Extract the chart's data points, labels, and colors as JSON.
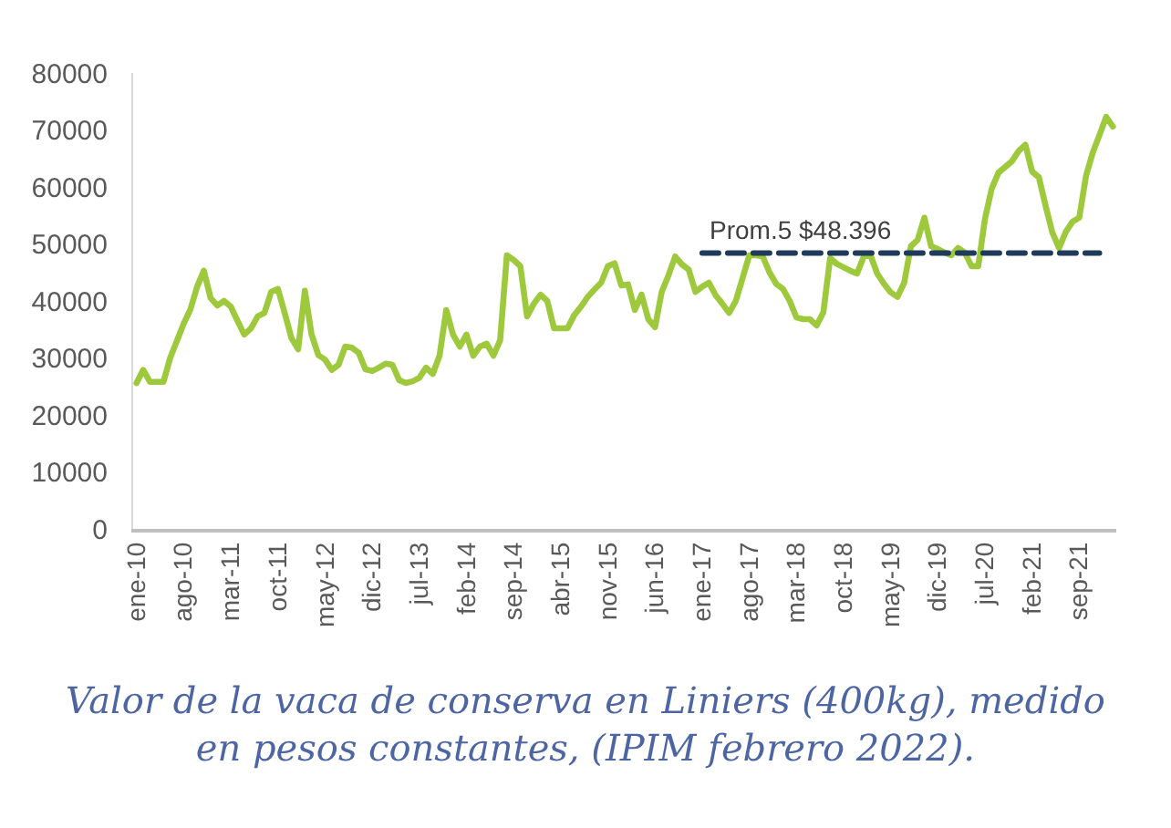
{
  "chart_data": {
    "type": "line",
    "categories": [
      "ene-10",
      null,
      null,
      null,
      null,
      null,
      null,
      "ago-10",
      null,
      null,
      null,
      null,
      null,
      null,
      "mar-11",
      null,
      null,
      null,
      null,
      null,
      null,
      "oct-11",
      null,
      null,
      null,
      null,
      null,
      null,
      "may-12",
      null,
      null,
      null,
      null,
      null,
      null,
      "dic-12",
      null,
      null,
      null,
      null,
      null,
      null,
      "jul-13",
      null,
      null,
      null,
      null,
      null,
      null,
      "feb-14",
      null,
      null,
      null,
      null,
      null,
      null,
      "sep-14",
      null,
      null,
      null,
      null,
      null,
      null,
      "abr-15",
      null,
      null,
      null,
      null,
      null,
      null,
      "nov-15",
      null,
      null,
      null,
      null,
      null,
      null,
      "jun-16",
      null,
      null,
      null,
      null,
      null,
      null,
      "ene-17",
      null,
      null,
      null,
      null,
      null,
      null,
      "ago-17",
      null,
      null,
      null,
      null,
      null,
      null,
      "mar-18",
      null,
      null,
      null,
      null,
      null,
      null,
      "oct-18",
      null,
      null,
      null,
      null,
      null,
      null,
      "may-19",
      null,
      null,
      null,
      null,
      null,
      null,
      "dic-19",
      null,
      null,
      null,
      null,
      null,
      null,
      "jul-20",
      null,
      null,
      null,
      null,
      null,
      null,
      "feb-21",
      null,
      null,
      null,
      null,
      null,
      null,
      "sep-21",
      null,
      null,
      null,
      null,
      null
    ],
    "series": [
      {
        "color": "#9ec93c",
        "values": [
          25600,
          27900,
          25800,
          25800,
          25800,
          30000,
          33000,
          36000,
          38500,
          42500,
          45300,
          40500,
          39200,
          40000,
          39000,
          36500,
          34100,
          35200,
          37300,
          37900,
          41600,
          42100,
          37900,
          33500,
          31500,
          41800,
          34100,
          30500,
          29700,
          27900,
          28800,
          32000,
          31800,
          30900,
          28000,
          27700,
          28300,
          29000,
          28800,
          26100,
          25600,
          25900,
          26500,
          28300,
          27200,
          30400,
          38400,
          34100,
          32000,
          34100,
          30400,
          32000,
          32500,
          30400,
          33100,
          48000,
          47200,
          46100,
          37300,
          39500,
          41100,
          40000,
          35200,
          35200,
          35200,
          37500,
          39000,
          40700,
          42000,
          43200,
          46100,
          46600,
          42700,
          42900,
          38400,
          41100,
          36800,
          35400,
          41600,
          44500,
          47800,
          46400,
          45500,
          41600,
          42500,
          43200,
          41000,
          39500,
          37900,
          40000,
          44000,
          48000,
          48000,
          47800,
          45000,
          43000,
          42100,
          40000,
          37100,
          36800,
          36800,
          35700,
          38000,
          47500,
          46500,
          45900,
          45300,
          44800,
          47800,
          48000,
          44800,
          43000,
          41500,
          40700,
          43200,
          49600,
          50700,
          54600,
          49600,
          49100,
          48500,
          48000,
          49300,
          48500,
          46100,
          46100,
          54400,
          59700,
          62500,
          63500,
          64500,
          66300,
          67400,
          62700,
          61700,
          56700,
          52000,
          49300,
          52100,
          53900,
          54600,
          61900,
          66000,
          69100,
          72300,
          70600
        ]
      },
      {
        "name": "Prom.5 $48.396",
        "color": "#1f3a5a",
        "line_style": "dashed",
        "values": [
          null,
          null,
          null,
          null,
          null,
          null,
          null,
          null,
          null,
          null,
          null,
          null,
          null,
          null,
          null,
          null,
          null,
          null,
          null,
          null,
          null,
          null,
          null,
          null,
          null,
          null,
          null,
          null,
          null,
          null,
          null,
          null,
          null,
          null,
          null,
          null,
          null,
          null,
          null,
          null,
          null,
          null,
          null,
          null,
          null,
          null,
          null,
          null,
          null,
          null,
          null,
          null,
          null,
          null,
          null,
          null,
          null,
          null,
          null,
          null,
          null,
          null,
          null,
          null,
          null,
          null,
          null,
          null,
          null,
          null,
          null,
          null,
          null,
          null,
          null,
          null,
          null,
          null,
          null,
          null,
          null,
          null,
          null,
          null,
          48396,
          48396,
          48396,
          48396,
          48396,
          48396,
          48396,
          48396,
          48396,
          48396,
          48396,
          48396,
          48396,
          48396,
          48396,
          48396,
          48396,
          48396,
          48396,
          48396,
          48396,
          48396,
          48396,
          48396,
          48396,
          48396,
          48396,
          48396,
          48396,
          48396,
          48396,
          48396,
          48396,
          48396,
          48396,
          48396,
          48396,
          48396,
          48396,
          48396,
          48396,
          48396,
          48396,
          48396,
          48396,
          48396,
          48396,
          48396,
          48396,
          48396,
          48396,
          48396,
          48396,
          48396,
          48396,
          48396,
          48396,
          48396,
          48396,
          48396,
          null,
          null
        ]
      }
    ],
    "ylim": [
      0,
      80000
    ],
    "yticks": [
      0,
      10000,
      20000,
      30000,
      40000,
      50000,
      60000,
      70000,
      80000
    ],
    "annotations": [
      "Valor de la vaca de conserva en Liniers (400kg), medido en pesos constantes, (IPIM febrero 2022)."
    ]
  }
}
